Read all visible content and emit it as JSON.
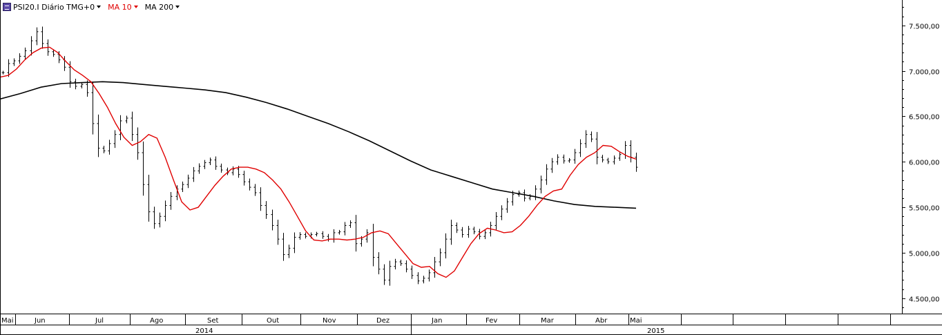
{
  "header": {
    "instrument": "PSI20.I Diário TMG+0",
    "indicator_1": "MA 10",
    "indicator_2": "MA 200",
    "icon": "cfd-icon"
  },
  "colors": {
    "price_bars": "#000000",
    "ma10": "#e00000",
    "ma200": "#000000",
    "grid": "#000000",
    "background": "#ffffff"
  },
  "chart_data": {
    "type": "line",
    "subtype": "ohlc-bars with moving averages",
    "ylim": [
      4300,
      7800
    ],
    "y_ticks": [
      4500,
      5000,
      5500,
      6000,
      6500,
      7000,
      7500
    ],
    "y_tick_labels": [
      "4.500,00",
      "5.000,00",
      "5.500,00",
      "6.000,00",
      "6.500,00",
      "7.000,00",
      "7.500,00"
    ],
    "x_month_labels": [
      "Mai",
      "Jun",
      "Jul",
      "Ago",
      "Set",
      "Out",
      "Nov",
      "Dez",
      "Jan",
      "Fev",
      "Mar",
      "Abr",
      "Mai"
    ],
    "x_year_labels": [
      "2014",
      "2015"
    ],
    "grid": false,
    "series": [
      {
        "name": "PSI20.I",
        "kind": "ohlc",
        "closes": [
          6980,
          7080,
          7110,
          7160,
          7220,
          7330,
          7430,
          7300,
          7210,
          7180,
          7120,
          7040,
          6880,
          6830,
          6850,
          6760,
          6420,
          6150,
          6120,
          6200,
          6300,
          6450,
          6480,
          6300,
          6100,
          5750,
          5450,
          5320,
          5400,
          5520,
          5620,
          5700,
          5750,
          5820,
          5900,
          5950,
          5990,
          6020,
          5950,
          5910,
          5880,
          5920,
          5860,
          5780,
          5720,
          5660,
          5520,
          5420,
          5300,
          5150,
          4980,
          5050,
          5170,
          5200,
          5180,
          5200,
          5210,
          5180,
          5150,
          5220,
          5230,
          5300,
          5330,
          5100,
          5150,
          5220,
          4950,
          4820,
          4700,
          4850,
          4900,
          4880,
          4820,
          4750,
          4690,
          4720,
          4780,
          4900,
          5000,
          5150,
          5300,
          5250,
          5200,
          5260,
          5230,
          5180,
          5220,
          5300,
          5400,
          5480,
          5560,
          5640,
          5660,
          5600,
          5620,
          5700,
          5800,
          5920,
          6000,
          6050,
          6010,
          6020,
          6100,
          6200,
          6300,
          6250,
          6050,
          6020,
          6000,
          6040,
          6080,
          6180,
          6050,
          5940
        ]
      },
      {
        "name": "MA 10",
        "kind": "line",
        "values": [
          6930,
          6950,
          7020,
          7120,
          7200,
          7250,
          7260,
          7200,
          7100,
          7010,
          6950,
          6880,
          6750,
          6600,
          6420,
          6270,
          6180,
          6220,
          6300,
          6260,
          6050,
          5800,
          5560,
          5470,
          5500,
          5620,
          5740,
          5840,
          5920,
          5940,
          5940,
          5920,
          5880,
          5800,
          5700,
          5560,
          5400,
          5240,
          5140,
          5130,
          5150,
          5150,
          5140,
          5150,
          5170,
          5220,
          5240,
          5210,
          5100,
          4990,
          4880,
          4840,
          4850,
          4770,
          4730,
          4800,
          4950,
          5100,
          5210,
          5270,
          5250,
          5220,
          5230,
          5300,
          5400,
          5520,
          5620,
          5680,
          5700,
          5850,
          5970,
          6050,
          6100,
          6180,
          6170,
          6110,
          6060,
          6030
        ]
      },
      {
        "name": "MA 200",
        "kind": "line",
        "values": [
          6690,
          6750,
          6820,
          6860,
          6870,
          6880,
          6870,
          6850,
          6830,
          6810,
          6790,
          6760,
          6710,
          6650,
          6580,
          6500,
          6420,
          6330,
          6230,
          6120,
          6010,
          5910,
          5840,
          5770,
          5700,
          5660,
          5620,
          5570,
          5530,
          5510,
          5500,
          5490
        ]
      }
    ]
  }
}
